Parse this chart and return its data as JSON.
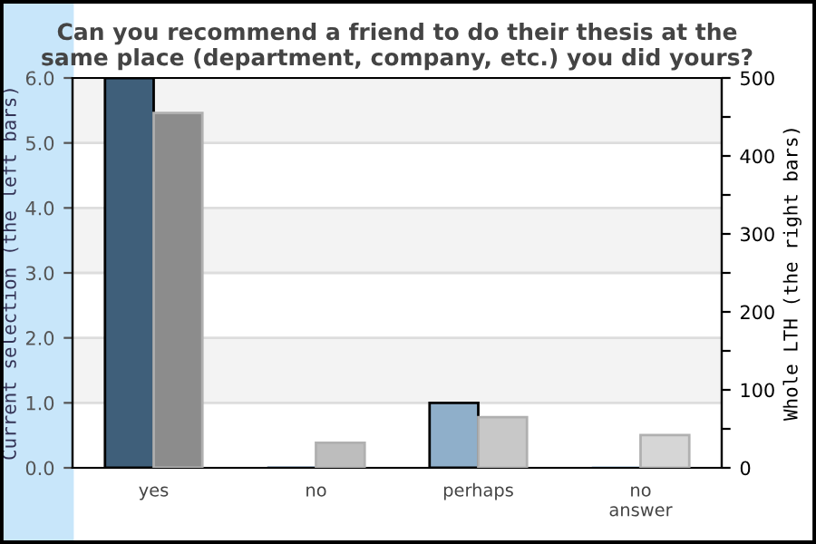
{
  "chart_data": {
    "type": "bar",
    "title": "Can you recommend a friend to do their thesis at the\nsame place (department, company, etc.) you did yours?",
    "ylabel": "Current selection (the left bars)",
    "y2label": "Whole LTH (the right bars)",
    "categories": [
      "yes",
      "no",
      "perhaps",
      "no\nanswer"
    ],
    "series": [
      {
        "colors": [
          "#3f5f7a",
          "#3f5f7a",
          "#8fafca",
          "#8fafca"
        ],
        "values": [
          6,
          0,
          1,
          0
        ]
      },
      {
        "colors": [
          "#8c8c8c",
          "#bdbdbd",
          "#c8c8c8",
          "#d6d6d6"
        ],
        "values": [
          455,
          32,
          65,
          42
        ],
        "axis": "y2"
      }
    ],
    "ylim": [
      0,
      6
    ],
    "yticks": [
      {
        "value": 0,
        "label": "0.0"
      },
      {
        "value": 1,
        "label": "1.0"
      },
      {
        "value": 2,
        "label": "2.0"
      },
      {
        "value": 3,
        "label": "3.0"
      },
      {
        "value": 4,
        "label": "4.0"
      },
      {
        "value": 5,
        "label": "5.0"
      },
      {
        "value": 6,
        "label": "6.0"
      }
    ],
    "y2lim": [
      0,
      500
    ],
    "y2ticks": [
      0,
      {
        "value": 50,
        "label": null
      },
      100,
      {
        "value": 150,
        "label": null
      },
      200,
      {
        "value": 250,
        "label": null
      },
      300,
      {
        "value": 350,
        "label": null
      },
      400,
      {
        "value": 450,
        "label": null
      },
      500
    ],
    "grid": "y",
    "legend": false
  }
}
